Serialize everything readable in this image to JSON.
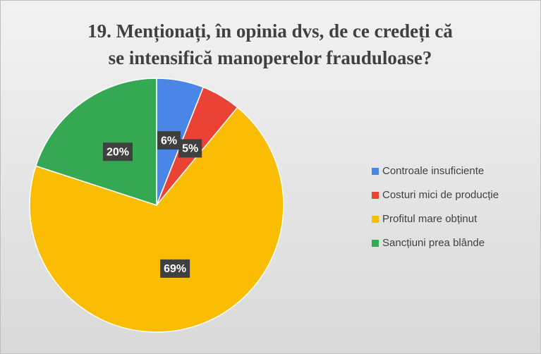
{
  "chart_data": {
    "type": "pie",
    "title": [
      "19. Menționați, în opinia dvs, de ce credeți că",
      "se intensifică manoperelor frauduloase?"
    ],
    "categories": [
      "Controale insuficiente",
      "Costuri mici de producție",
      "Profitul mare obținut",
      "Sancțiuni prea blânde"
    ],
    "values": [
      6,
      5,
      69,
      20
    ],
    "value_labels": [
      "6%",
      "5%",
      "69%",
      "20%"
    ],
    "colors": [
      "#4a86e8",
      "#ea4335",
      "#fbbc04",
      "#34a853"
    ],
    "legend": "right"
  }
}
